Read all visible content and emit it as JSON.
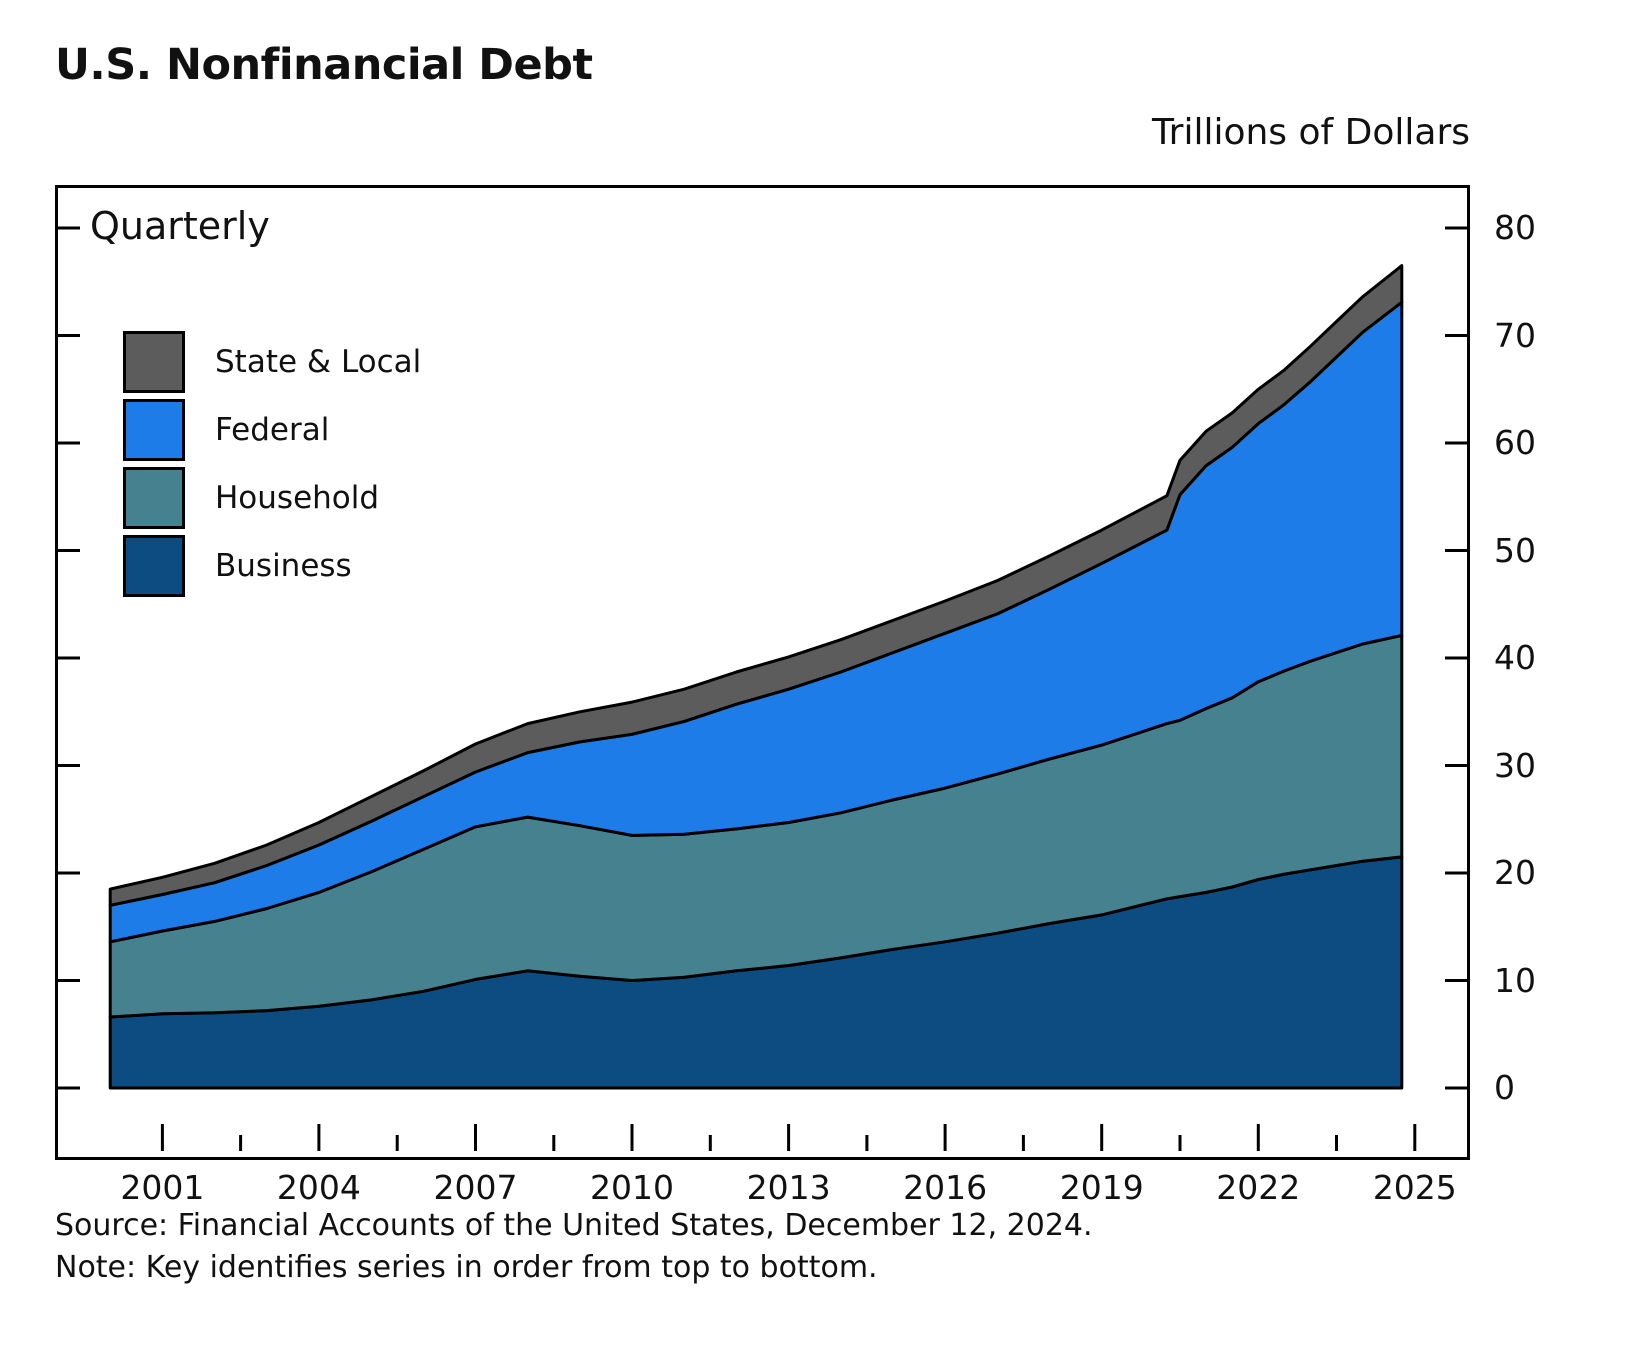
{
  "title": "U.S. Nonfinancial Debt",
  "units_label": "Trillions of Dollars",
  "frequency_label": "Quarterly",
  "source": "Source: Financial Accounts of the United States, December 12, 2024.",
  "note": "Note: Key identifies series in order from top to bottom.",
  "legend": [
    {
      "label": "State & Local",
      "color": "#5c5c5c"
    },
    {
      "label": "Federal",
      "color": "#1d7ce8"
    },
    {
      "label": "Household",
      "color": "#45818e"
    },
    {
      "label": "Business",
      "color": "#0d4c80"
    }
  ],
  "chart_data": {
    "type": "area",
    "stacked": true,
    "title": "U.S. Nonfinancial Debt",
    "xlabel": "",
    "ylabel": "Trillions of Dollars",
    "frequency": "Quarterly",
    "grid": false,
    "legend_position": "top-left",
    "xlim": [
      1999,
      2026
    ],
    "ylim": [
      0,
      80
    ],
    "xticks": [
      2001,
      2004,
      2007,
      2010,
      2013,
      2016,
      2019,
      2022,
      2025
    ],
    "yticks": [
      0,
      10,
      20,
      30,
      40,
      50,
      60,
      70,
      80
    ],
    "x": [
      2000,
      2001,
      2002,
      2003,
      2004,
      2005,
      2006,
      2007,
      2008,
      2009,
      2010,
      2011,
      2012,
      2013,
      2014,
      2015,
      2016,
      2017,
      2018,
      2019,
      2020.25,
      2020.5,
      2021,
      2021.5,
      2022,
      2022.5,
      2023,
      2023.5,
      2024,
      2024.75
    ],
    "series": [
      {
        "name": "Business",
        "color": "#0d4c80",
        "values": [
          6.6,
          6.9,
          7.0,
          7.2,
          7.6,
          8.2,
          9.0,
          10.1,
          10.9,
          10.4,
          10.0,
          10.3,
          10.9,
          11.4,
          12.1,
          12.9,
          13.6,
          14.4,
          15.3,
          16.1,
          17.6,
          17.8,
          18.2,
          18.7,
          19.4,
          19.9,
          20.3,
          20.7,
          21.1,
          21.5
        ]
      },
      {
        "name": "Household",
        "color": "#45818e",
        "values": [
          7.0,
          7.7,
          8.5,
          9.5,
          10.6,
          11.9,
          13.2,
          14.2,
          14.3,
          14.0,
          13.5,
          13.3,
          13.2,
          13.3,
          13.5,
          13.9,
          14.3,
          14.8,
          15.3,
          15.8,
          16.3,
          16.4,
          17.1,
          17.6,
          18.4,
          18.9,
          19.4,
          19.8,
          20.2,
          20.6
        ]
      },
      {
        "name": "Federal",
        "color": "#1d7ce8",
        "values": [
          3.4,
          3.4,
          3.6,
          4.0,
          4.4,
          4.7,
          4.9,
          5.1,
          6.0,
          7.8,
          9.4,
          10.5,
          11.6,
          12.4,
          13.1,
          13.7,
          14.4,
          14.9,
          15.8,
          16.9,
          18.0,
          21.0,
          22.6,
          23.3,
          24.0,
          24.8,
          26.0,
          27.5,
          29.0,
          31.0
        ]
      },
      {
        "name": "State & Local",
        "color": "#5c5c5c",
        "values": [
          1.5,
          1.6,
          1.8,
          1.9,
          2.1,
          2.3,
          2.4,
          2.6,
          2.7,
          2.8,
          3.0,
          3.0,
          3.0,
          3.0,
          3.0,
          3.0,
          3.0,
          3.1,
          3.1,
          3.1,
          3.2,
          3.2,
          3.2,
          3.2,
          3.2,
          3.2,
          3.3,
          3.3,
          3.3,
          3.4
        ]
      }
    ]
  }
}
